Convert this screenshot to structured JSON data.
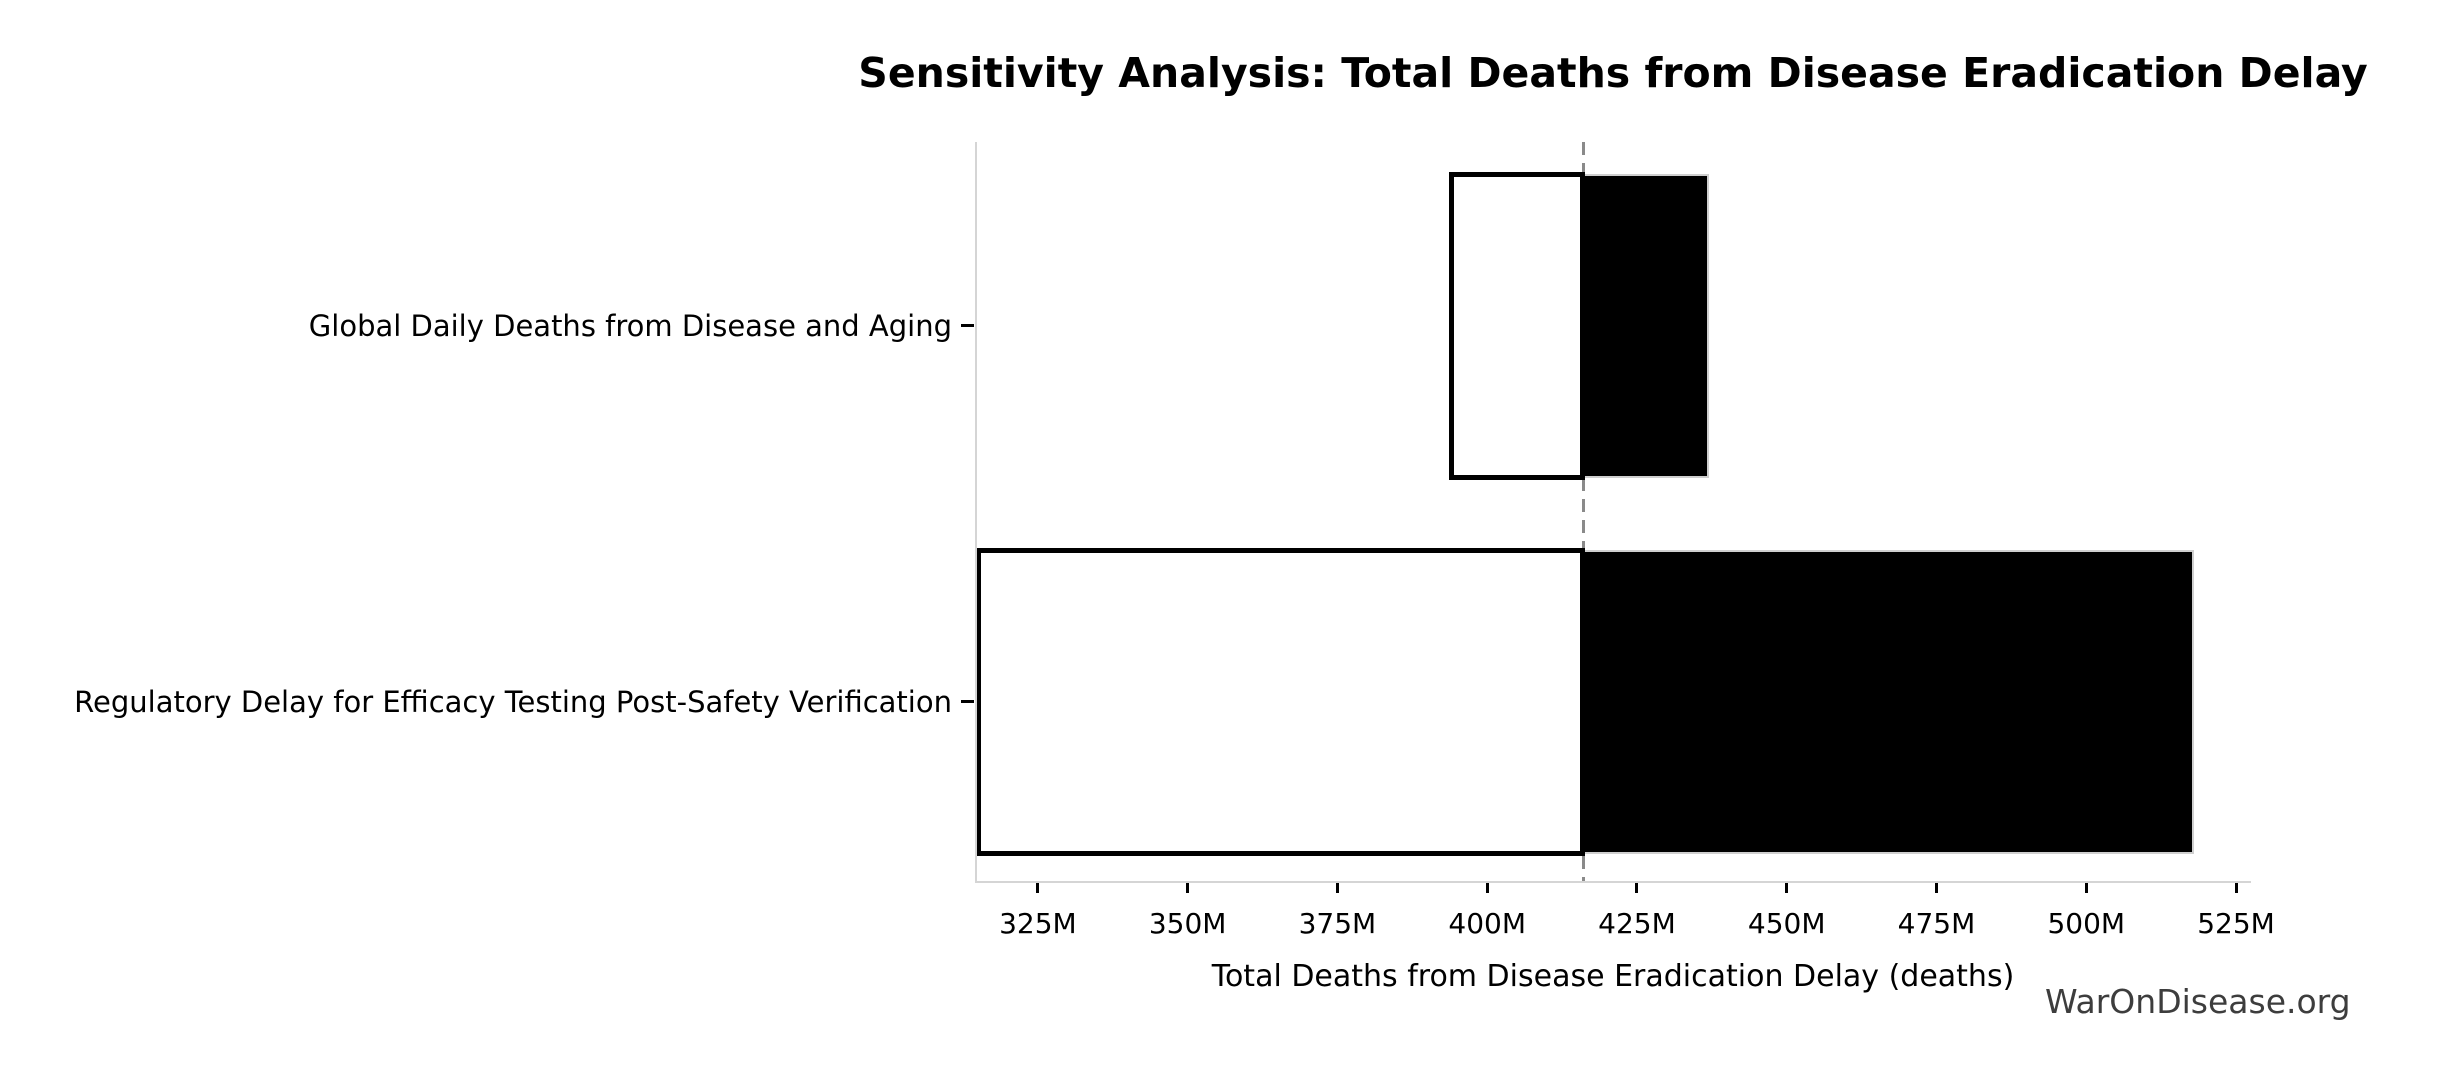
{
  "page": {
    "background": "#ffffff"
  },
  "watermark": "WarOnDisease.org",
  "chart_data": {
    "type": "bar",
    "subtype": "tornado-sensitivity",
    "orientation": "horizontal",
    "title": "Sensitivity Analysis: Total Deaths from Disease Eradication Delay",
    "xlabel": "Total Deaths from Disease Eradication Delay (deaths)",
    "ylabel": "",
    "value_unit": "M (millions of deaths)",
    "xlim": [
      314.5,
      527.5
    ],
    "xticks": [
      {
        "value": 325,
        "label": "325M"
      },
      {
        "value": 350,
        "label": "350M"
      },
      {
        "value": 375,
        "label": "375M"
      },
      {
        "value": 400,
        "label": "400M"
      },
      {
        "value": 425,
        "label": "425M"
      },
      {
        "value": 450,
        "label": "450M"
      },
      {
        "value": 475,
        "label": "475M"
      },
      {
        "value": 500,
        "label": "500M"
      },
      {
        "value": 525,
        "label": "525M"
      }
    ],
    "baseline": {
      "value": 416,
      "line_style": "dashed",
      "color": "#8a8a8a"
    },
    "categories": [
      "Global Daily Deaths from Disease and Aging",
      "Regulatory Delay for Efficacy Testing Post-Safety Verification"
    ],
    "bars": [
      {
        "category": "Global Daily Deaths from Disease and Aging",
        "low": 394,
        "high": 437
      },
      {
        "category": "Regulatory Delay for Efficacy Testing Post-Safety Verification",
        "low": 315,
        "high": 518
      }
    ],
    "segment_styles": {
      "below_baseline": {
        "fill": "#ffffff",
        "edge": "#000000"
      },
      "above_baseline": {
        "fill": "#000000",
        "edge": "#cfcfcf"
      }
    },
    "grid": false,
    "legend": false,
    "colors": {
      "spine": "#d5d5d5",
      "tick": "#000000",
      "text": "#000000",
      "watermark": "#3d3d3d",
      "background": "#ffffff"
    }
  }
}
